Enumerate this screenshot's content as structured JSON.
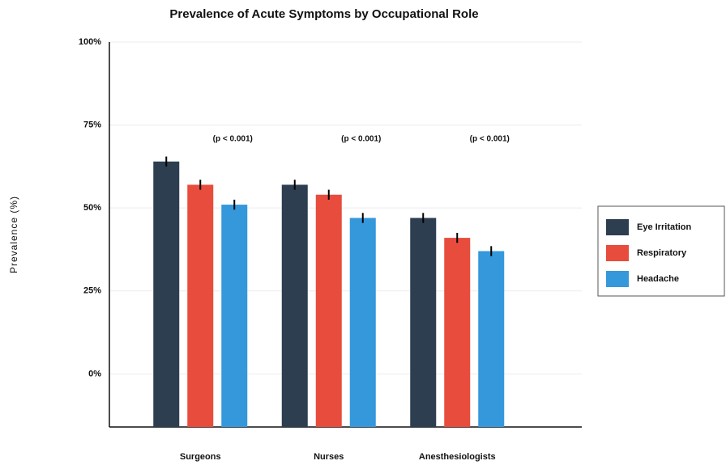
{
  "chart_data": {
    "type": "bar",
    "title": "Prevalence of Acute Symptoms by Occupational Role",
    "y_label": "Prevalence (%)",
    "categories": [
      "Surgeons",
      "Nurses",
      "Anesthesiologists"
    ],
    "series": [
      {
        "name": "Eye Irritation",
        "color": "#2c3e50",
        "values": [
          64,
          57,
          47
        ],
        "errors": [
          1.5,
          1.5,
          1.5
        ]
      },
      {
        "name": "Respiratory",
        "color": "#e74c3c",
        "values": [
          57,
          54,
          41
        ],
        "errors": [
          1.5,
          1.5,
          1.5
        ]
      },
      {
        "name": "Headache",
        "color": "#3498db",
        "values": [
          51,
          47,
          37
        ],
        "errors": [
          1.5,
          1.5,
          1.5
        ]
      }
    ],
    "annotations": [
      "(p < 0.001)",
      "(p < 0.001)",
      "(p < 0.001)"
    ],
    "ylim": [
      -16,
      100
    ],
    "yticks": [
      {
        "value": 0,
        "label": "0%"
      },
      {
        "value": 25,
        "label": "25%"
      },
      {
        "value": 50,
        "label": "50%"
      },
      {
        "value": 75,
        "label": "75%"
      },
      {
        "value": 100,
        "label": "100%"
      }
    ],
    "grid": true,
    "legend": "right"
  }
}
